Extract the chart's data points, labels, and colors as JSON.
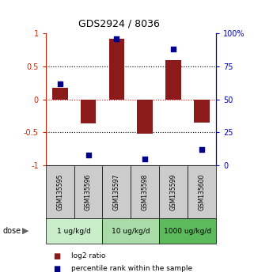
{
  "title": "GDS2924 / 8036",
  "samples": [
    "GSM135595",
    "GSM135596",
    "GSM135597",
    "GSM135598",
    "GSM135599",
    "GSM135600"
  ],
  "log2_ratio": [
    0.18,
    -0.37,
    0.92,
    -0.52,
    0.6,
    -0.35
  ],
  "percentile_rank": [
    62,
    8,
    96,
    5,
    88,
    12
  ],
  "bar_color": "#8B1A1A",
  "marker_color": "#00008B",
  "ylim_left": [
    -1,
    1
  ],
  "ylim_right": [
    0,
    100
  ],
  "yticks_left": [
    -1,
    -0.5,
    0,
    0.5,
    1
  ],
  "yticks_right": [
    0,
    25,
    50,
    75,
    100
  ],
  "ytick_labels_right": [
    "0",
    "25",
    "50",
    "75",
    "100%"
  ],
  "hlines_black": [
    0.5,
    -0.5
  ],
  "hline_red": 0,
  "dose_groups": [
    {
      "label": "1 ug/kg/d",
      "color": "#c8edc8"
    },
    {
      "label": "10 ug/kg/d",
      "color": "#a8dba8"
    },
    {
      "label": "1000 ug/kg/d",
      "color": "#5cba5c"
    }
  ],
  "legend_red_label": "log2 ratio",
  "legend_blue_label": "percentile rank within the sample",
  "dose_label": "dose",
  "background_color": "#ffffff",
  "plot_bg_color": "#ffffff",
  "label_color_left": "#cc2200",
  "label_color_right": "#0000cc",
  "sample_box_color": "#cccccc",
  "bar_width": 0.55
}
